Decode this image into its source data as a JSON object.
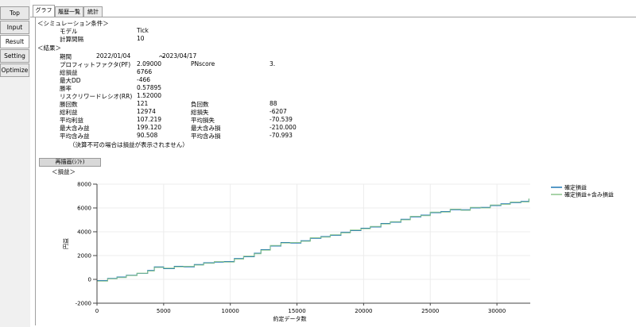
{
  "nav": [
    "Top",
    "Input",
    "Result",
    "Setting",
    "Optimize"
  ],
  "tabs": [
    "グラフ",
    "履歴一覧",
    "統計"
  ],
  "sim_header": "＜シミュレーション条件＞",
  "sim": [
    {
      "label": "モデル",
      "value": "Tick"
    },
    {
      "label": "計算間隔",
      "value": "10"
    }
  ],
  "results_header": "＜結果＞",
  "period": {
    "label": "期間",
    "start": "2022/01/04",
    "sep": "～",
    "end": "2023/04/17"
  },
  "stats_left": [
    {
      "label": "プロフィットファクタ(PF)",
      "value": "2.09000"
    },
    {
      "label": "総損益",
      "value": "6766"
    },
    {
      "label": "最大DD",
      "value": "-466"
    },
    {
      "label": "勝率",
      "value": "0.57895"
    },
    {
      "label": "リスクリワードレシオ(RR)",
      "value": "1.52000"
    },
    {
      "label": "勝回数",
      "value": "121"
    },
    {
      "label": "総利益",
      "value": "12974"
    },
    {
      "label": "平均利益",
      "value": "107.219"
    },
    {
      "label": "最大含み益",
      "value": "199.120"
    },
    {
      "label": "平均含み益",
      "value": "90.508"
    }
  ],
  "stats_right": [
    {
      "label": "PNscore",
      "value": "3."
    },
    {
      "label": "負回数",
      "value": "88"
    },
    {
      "label": "総損失",
      "value": "-6207"
    },
    {
      "label": "平均損失",
      "value": "-70.539"
    },
    {
      "label": "最大含み損",
      "value": "-210.000"
    },
    {
      "label": "平均含み損",
      "value": "-70.993"
    }
  ],
  "note": "（決算不可の場合は損益が表示されません）",
  "redraw_button": "再描画(ｼﾌﾄ)",
  "graph_header": "＜損益＞",
  "chart_data": {
    "type": "line",
    "ylabel": "円益",
    "xlabel": "約定データ数",
    "xlim": [
      0,
      32500
    ],
    "ylim": [
      -2000,
      8000
    ],
    "x_ticks": [
      0,
      5000,
      10000,
      15000,
      20000,
      25000,
      30000
    ],
    "y_ticks": [
      -2000,
      0,
      2000,
      4000,
      6000,
      8000
    ],
    "grid": true,
    "legend_position": "right",
    "series": [
      {
        "name": "確定損益",
        "color": "#1f77b4",
        "x": [
          0,
          800,
          1500,
          2200,
          3000,
          3800,
          4300,
          5000,
          5800,
          6500,
          7300,
          8000,
          8800,
          9500,
          10300,
          11000,
          11800,
          12300,
          13000,
          13800,
          14500,
          15300,
          16000,
          16800,
          17500,
          18300,
          19000,
          19800,
          20500,
          21300,
          22000,
          22800,
          23500,
          24300,
          25000,
          25800,
          26500,
          27300,
          28000,
          28800,
          29500,
          30300,
          31000,
          31800,
          32400
        ],
        "y": [
          -100,
          80,
          200,
          350,
          500,
          750,
          1050,
          900,
          1100,
          1050,
          1250,
          1400,
          1450,
          1500,
          1750,
          1900,
          2200,
          2500,
          2800,
          3100,
          3050,
          3250,
          3450,
          3600,
          3700,
          3950,
          4100,
          4300,
          4400,
          4700,
          4800,
          5050,
          5250,
          5400,
          5600,
          5700,
          5850,
          5850,
          6000,
          6050,
          6200,
          6350,
          6450,
          6550,
          6750
        ]
      },
      {
        "name": "確定損益+含み損益",
        "color": "#8bc48a",
        "x": [
          0,
          800,
          1500,
          2200,
          3000,
          3800,
          4300,
          5000,
          5800,
          6500,
          7300,
          8000,
          8800,
          9500,
          10300,
          11000,
          11800,
          12300,
          13000,
          13800,
          14500,
          15300,
          16000,
          16800,
          17500,
          18300,
          19000,
          19800,
          20500,
          21300,
          22000,
          22800,
          23500,
          24300,
          25000,
          25800,
          26500,
          27300,
          28000,
          28800,
          29500,
          30300,
          31000,
          31800,
          32400
        ],
        "y": [
          -150,
          50,
          150,
          320,
          520,
          700,
          1000,
          950,
          1050,
          1100,
          1200,
          1350,
          1500,
          1450,
          1700,
          1950,
          2150,
          2450,
          2850,
          3050,
          3100,
          3200,
          3500,
          3550,
          3750,
          3900,
          4150,
          4250,
          4450,
          4650,
          4850,
          5000,
          5300,
          5350,
          5650,
          5650,
          5900,
          5800,
          6050,
          6000,
          6250,
          6300,
          6500,
          6500,
          6800
        ]
      }
    ]
  }
}
